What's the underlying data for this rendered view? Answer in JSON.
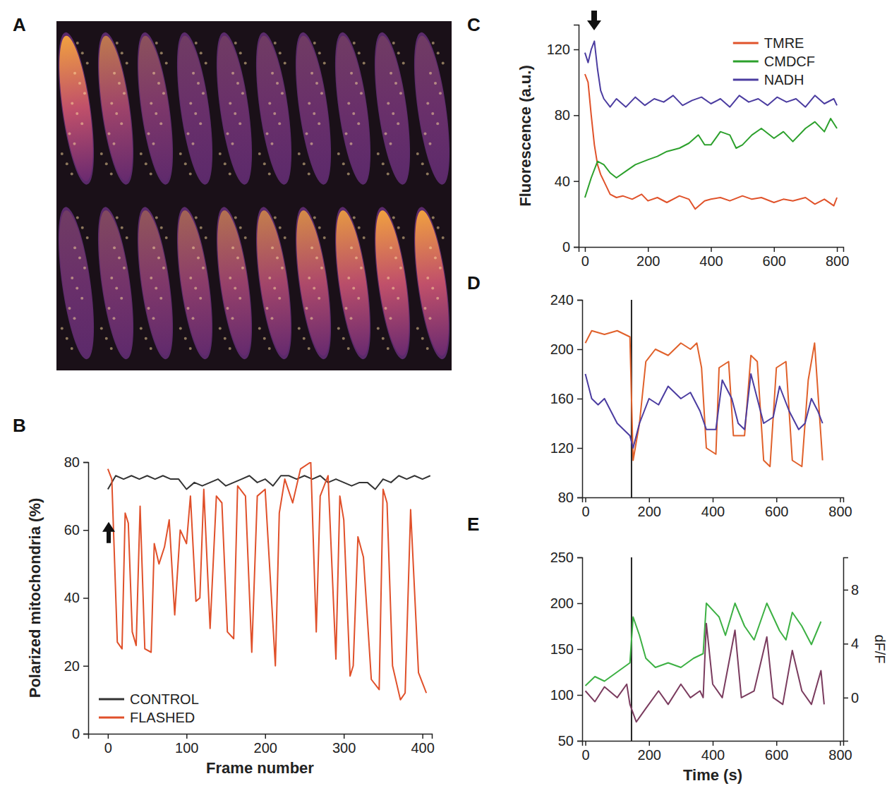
{
  "chart_data": [
    {
      "panel": "A",
      "type": "image"
    },
    {
      "panel": "B",
      "type": "line",
      "xlabel": "Frame number",
      "ylabel": "Polarized mitochondria (%)",
      "xlim": [
        -25,
        412
      ],
      "xticks": [
        0,
        100,
        200,
        300,
        400
      ],
      "ylim": [
        0,
        80
      ],
      "yticks": [
        0,
        20,
        40,
        60,
        80
      ],
      "legend": "lower left",
      "series": [
        {
          "name": "CONTROL",
          "color": "#333333",
          "x": [
            0,
            10,
            20,
            30,
            40,
            50,
            60,
            70,
            80,
            90,
            100,
            110,
            120,
            130,
            140,
            150,
            160,
            170,
            180,
            190,
            200,
            210,
            220,
            230,
            240,
            250,
            260,
            270,
            280,
            290,
            300,
            310,
            320,
            330,
            340,
            350,
            360,
            370,
            380,
            390,
            400,
            410
          ],
          "values": [
            72,
            76,
            75,
            76,
            75,
            76,
            75,
            76,
            75,
            75,
            72,
            74,
            73,
            74,
            75,
            73,
            74,
            75,
            76,
            74,
            75,
            73,
            76,
            76,
            75,
            76,
            75,
            76,
            74,
            75,
            74,
            73,
            74,
            74,
            72,
            75,
            74,
            76,
            75,
            76,
            75,
            76
          ]
        },
        {
          "name": "FLASHED",
          "color": "#e0502a",
          "x": [
            0,
            5,
            12,
            18,
            22,
            26,
            31,
            36,
            41,
            47,
            55,
            59,
            65,
            72,
            78,
            85,
            92,
            100,
            105,
            112,
            117,
            122,
            130,
            138,
            145,
            152,
            160,
            165,
            175,
            183,
            190,
            200,
            213,
            218,
            225,
            235,
            245,
            258,
            265,
            270,
            280,
            290,
            295,
            300,
            308,
            312,
            318,
            325,
            335,
            345,
            350,
            355,
            362,
            372,
            378,
            385,
            395,
            400,
            405
          ],
          "values": [
            78,
            75,
            27,
            25,
            65,
            62,
            30,
            26,
            67,
            25,
            24,
            56,
            50,
            55,
            63,
            35,
            60,
            56,
            70,
            39,
            40,
            72,
            31,
            70,
            68,
            30,
            28,
            73,
            70,
            24,
            70,
            72,
            20,
            65,
            75,
            68,
            78,
            80,
            30,
            70,
            76,
            22,
            70,
            63,
            17,
            20,
            58,
            52,
            16,
            13,
            72,
            68,
            20,
            10,
            12,
            66,
            18,
            15,
            12
          ]
        }
      ]
    },
    {
      "panel": "C",
      "type": "line",
      "ylabel": "Fluorescence (a.u.)",
      "xlim": [
        -20,
        820
      ],
      "xticks": [
        0,
        200,
        400,
        600,
        800
      ],
      "ylim": [
        0,
        135
      ],
      "yticks": [
        0,
        40,
        80,
        120
      ],
      "legend": "upper right",
      "series": [
        {
          "name": "TMRE",
          "color": "#e0522a",
          "x": [
            0,
            10,
            20,
            30,
            40,
            50,
            60,
            80,
            100,
            120,
            150,
            180,
            200,
            230,
            260,
            300,
            330,
            350,
            380,
            400,
            430,
            460,
            500,
            530,
            560,
            600,
            630,
            660,
            700,
            730,
            760,
            790,
            800
          ],
          "values": [
            105,
            100,
            80,
            62,
            50,
            44,
            40,
            32,
            30,
            31,
            29,
            32,
            28,
            30,
            27,
            31,
            29,
            23,
            28,
            29,
            30,
            28,
            31,
            29,
            30,
            27,
            29,
            28,
            30,
            26,
            29,
            25,
            30
          ]
        },
        {
          "name": "CMDCF",
          "color": "#2ca02c",
          "x": [
            0,
            20,
            40,
            60,
            80,
            100,
            130,
            160,
            200,
            230,
            260,
            300,
            330,
            360,
            380,
            400,
            430,
            460,
            480,
            500,
            530,
            560,
            600,
            630,
            660,
            700,
            730,
            760,
            780,
            800
          ],
          "values": [
            30,
            42,
            52,
            50,
            45,
            42,
            46,
            50,
            53,
            55,
            58,
            60,
            63,
            68,
            62,
            62,
            70,
            68,
            60,
            62,
            68,
            72,
            66,
            70,
            64,
            72,
            76,
            70,
            78,
            72
          ]
        },
        {
          "name": "NADH",
          "color": "#4b3ca0",
          "x": [
            0,
            10,
            20,
            30,
            40,
            50,
            60,
            80,
            100,
            130,
            160,
            190,
            220,
            250,
            280,
            310,
            340,
            370,
            400,
            430,
            460,
            490,
            520,
            550,
            580,
            610,
            640,
            670,
            700,
            730,
            760,
            790,
            800
          ],
          "values": [
            118,
            112,
            120,
            125,
            108,
            95,
            90,
            85,
            90,
            85,
            91,
            86,
            90,
            88,
            92,
            86,
            89,
            91,
            87,
            90,
            85,
            92,
            88,
            90,
            86,
            91,
            88,
            90,
            85,
            92,
            87,
            90,
            86
          ]
        }
      ]
    },
    {
      "panel": "D",
      "type": "line",
      "xlim": [
        -10,
        810
      ],
      "xticks": [
        0,
        200,
        400,
        600,
        800
      ],
      "ylim": [
        80,
        240
      ],
      "yticks": [
        80,
        120,
        160,
        200,
        240
      ],
      "vline": 145,
      "series": [
        {
          "color": "#e0602a",
          "x": [
            0,
            20,
            60,
            100,
            140,
            150,
            170,
            190,
            220,
            260,
            300,
            330,
            350,
            365,
            380,
            410,
            420,
            450,
            465,
            500,
            520,
            540,
            560,
            580,
            600,
            630,
            650,
            680,
            700,
            720,
            745
          ],
          "values": [
            205,
            215,
            212,
            215,
            210,
            110,
            140,
            190,
            200,
            195,
            205,
            200,
            205,
            185,
            120,
            115,
            185,
            190,
            130,
            130,
            195,
            190,
            110,
            105,
            185,
            190,
            110,
            105,
            175,
            205,
            110
          ]
        },
        {
          "color": "#4b3ca0",
          "x": [
            0,
            20,
            40,
            60,
            100,
            140,
            150,
            170,
            200,
            230,
            260,
            300,
            330,
            360,
            380,
            410,
            430,
            460,
            480,
            500,
            520,
            540,
            560,
            590,
            610,
            640,
            670,
            690,
            710,
            730,
            745
          ],
          "values": [
            180,
            160,
            155,
            160,
            140,
            130,
            120,
            140,
            160,
            155,
            170,
            160,
            165,
            150,
            135,
            135,
            175,
            160,
            140,
            135,
            180,
            160,
            140,
            145,
            170,
            150,
            135,
            140,
            160,
            150,
            140
          ]
        }
      ]
    },
    {
      "panel": "E",
      "type": "line",
      "xlabel": "Time (s)",
      "y2label": "dF/F",
      "xlim": [
        -10,
        810
      ],
      "xticks": [
        0,
        200,
        400,
        600,
        800
      ],
      "ylim": [
        50,
        250
      ],
      "yticks": [
        50,
        100,
        150,
        200,
        250
      ],
      "y2lim": [
        -3.2,
        10.4
      ],
      "y2ticks": [
        0,
        4,
        8
      ],
      "vline": 145,
      "series": [
        {
          "color": "#3cb043",
          "x": [
            0,
            30,
            60,
            100,
            140,
            150,
            170,
            190,
            220,
            260,
            300,
            340,
            370,
            380,
            420,
            440,
            470,
            500,
            530,
            570,
            610,
            630,
            650,
            680,
            710,
            740
          ],
          "values": [
            110,
            120,
            115,
            125,
            135,
            185,
            165,
            140,
            130,
            135,
            130,
            140,
            145,
            200,
            185,
            165,
            200,
            175,
            160,
            200,
            170,
            160,
            190,
            175,
            155,
            180
          ]
        },
        {
          "color": "#7a3b5e",
          "axis": "y2",
          "x": [
            0,
            30,
            60,
            100,
            130,
            140,
            160,
            190,
            230,
            260,
            300,
            330,
            360,
            370,
            380,
            400,
            430,
            470,
            490,
            530,
            570,
            590,
            620,
            650,
            680,
            710,
            740,
            750
          ],
          "values": [
            0.5,
            -0.3,
            0.8,
            0,
            1,
            -0.5,
            -1.8,
            -0.8,
            0.5,
            -0.5,
            1,
            0,
            0.5,
            0,
            5.5,
            1,
            0,
            5,
            0,
            0.5,
            4.5,
            0,
            -0.5,
            3.5,
            0.5,
            -0.5,
            2,
            -0.5
          ]
        }
      ]
    }
  ]
}
